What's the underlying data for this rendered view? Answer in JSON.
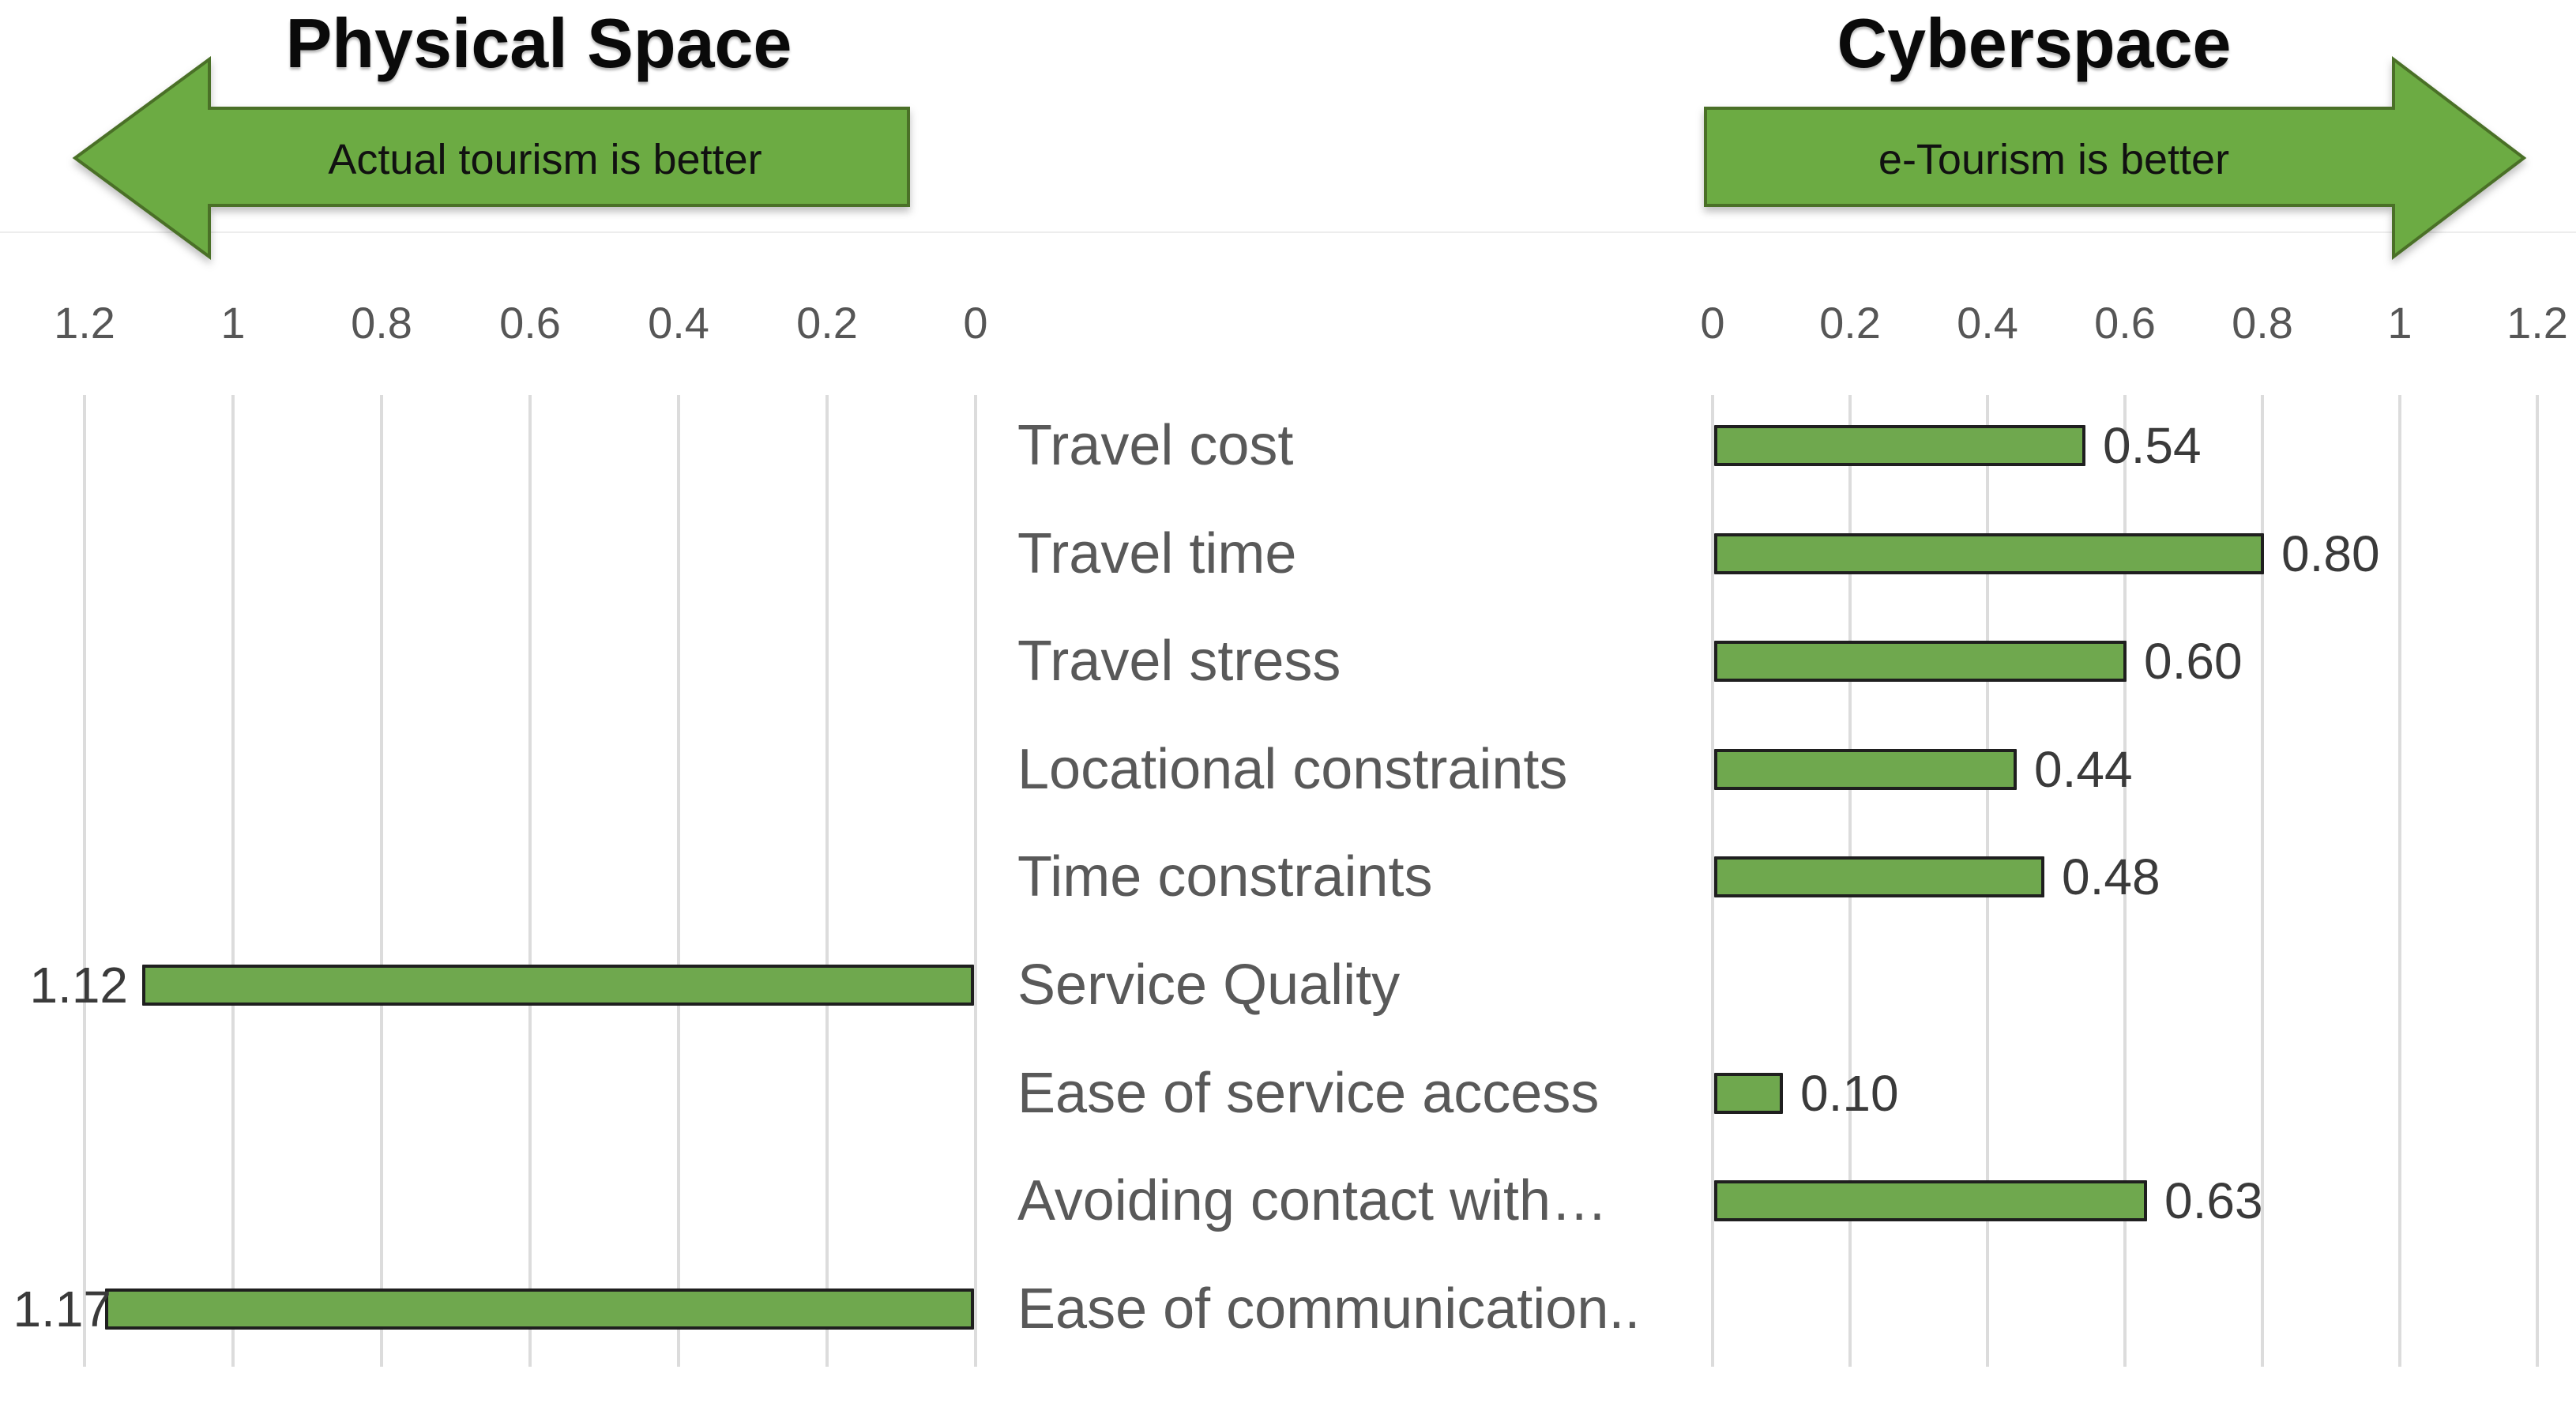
{
  "page": {
    "background": "#ffffff"
  },
  "left_panel": {
    "title": "Physical Space",
    "arrow_label": "Actual tourism is better",
    "axis_ticks": [
      "1.2",
      "1",
      "0.8",
      "0.6",
      "0.4",
      "0.2",
      "0"
    ]
  },
  "right_panel": {
    "title": "Cyberspace",
    "arrow_label": "e-Tourism is better",
    "axis_ticks": [
      "0",
      "0.2",
      "0.4",
      "0.6",
      "0.8",
      "1",
      "1.2"
    ]
  },
  "chart_data": {
    "type": "bar",
    "orientation": "horizontal",
    "layout": "diverging-tornado",
    "gridlines": true,
    "axis_range_left": [
      1.2,
      0
    ],
    "axis_range_right": [
      0,
      1.2
    ],
    "categories": [
      "Travel cost",
      "Travel time",
      "Travel stress",
      "Locational constraints",
      "Time constraints",
      "Service Quality",
      "Ease of service access",
      "Avoiding contact with…",
      "Ease of communication.."
    ],
    "series": [
      {
        "name": "Physical Space",
        "side": "left",
        "values": [
          null,
          null,
          null,
          null,
          null,
          1.12,
          null,
          null,
          1.17
        ]
      },
      {
        "name": "Cyberspace",
        "side": "right",
        "values": [
          0.54,
          0.8,
          0.6,
          0.44,
          0.48,
          null,
          0.1,
          0.63,
          null
        ]
      }
    ],
    "value_labels_left": [
      "",
      "",
      "",
      "",
      "",
      "1.12",
      "",
      "",
      "1.17"
    ],
    "value_labels_right": [
      "0.54",
      "0.80",
      "0.60",
      "0.44",
      "0.48",
      "",
      "0.10",
      "0.63",
      ""
    ]
  },
  "colors": {
    "bar_fill": "#6FA84E",
    "bar_border": "#1f1f1f",
    "arrow_fill": "#6CAB43",
    "arrow_border": "#4A7027",
    "grid": "#dcdcdc",
    "category_text": "#595959",
    "tick_text": "#565656",
    "value_text": "#3a3a3a",
    "title_text": "#0a0a0a"
  }
}
